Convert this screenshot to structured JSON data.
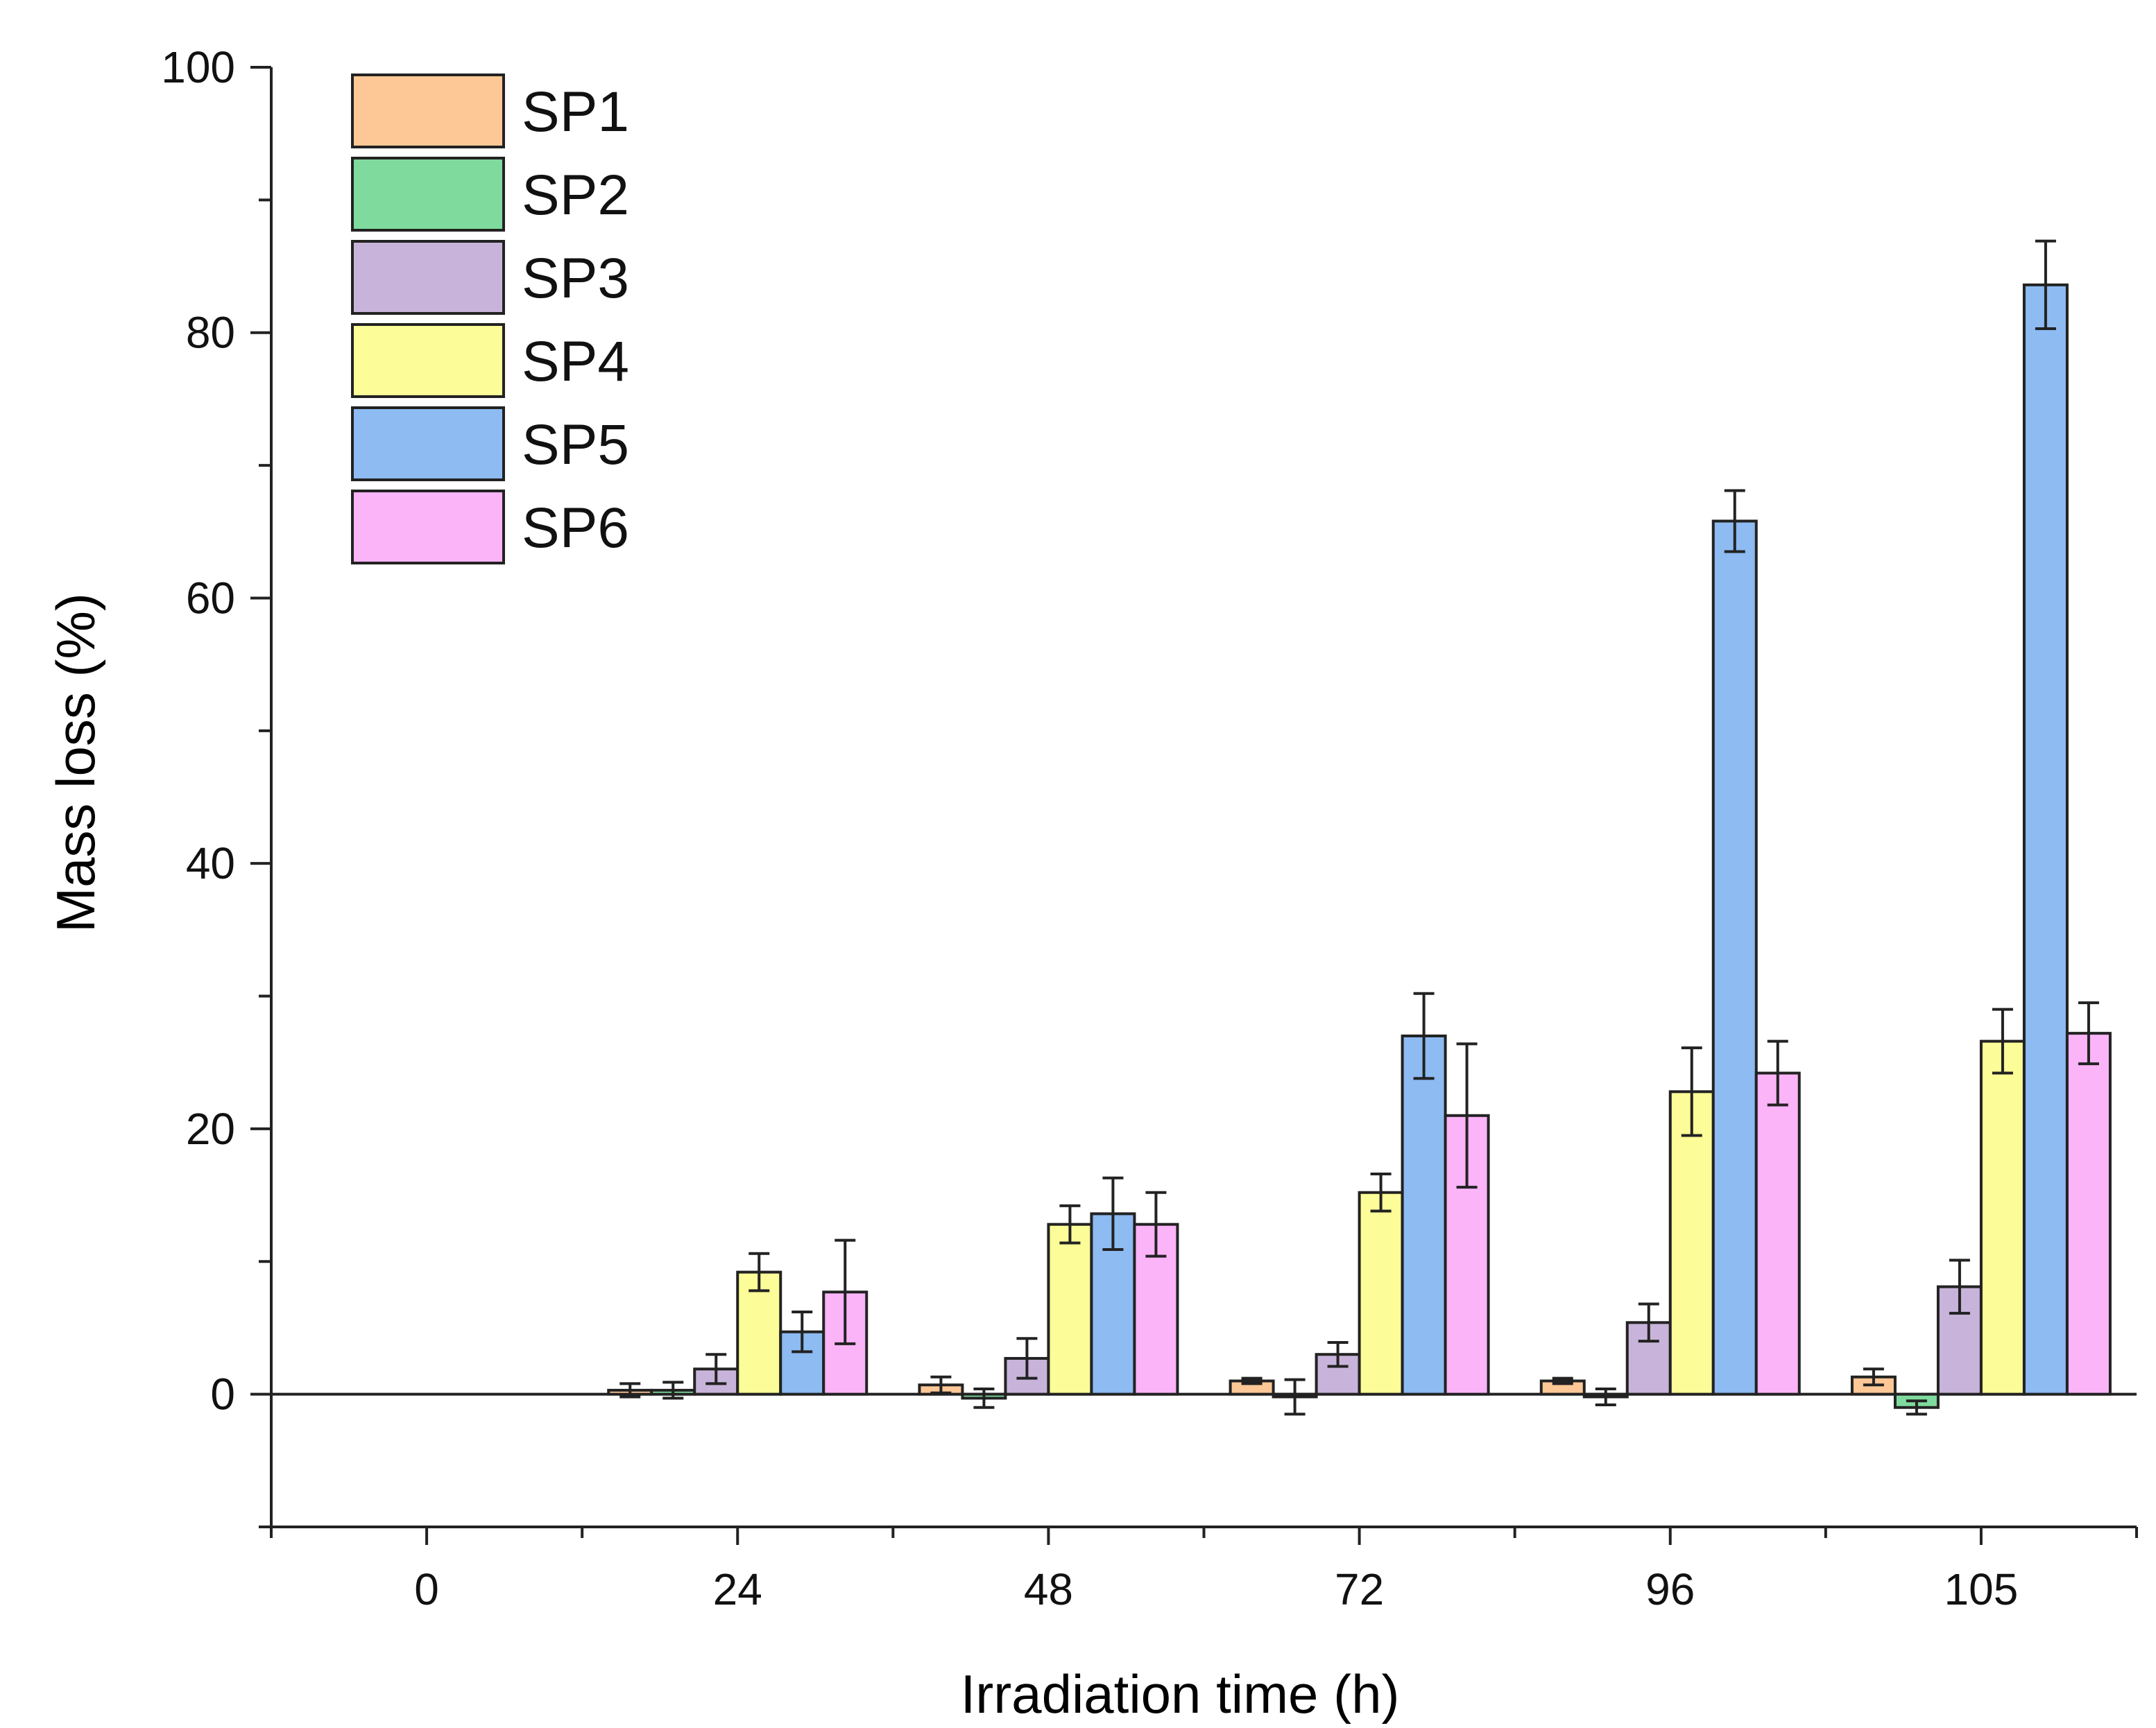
{
  "chart_data": {
    "type": "bar",
    "title": "",
    "xlabel": "Irradiation time (h)",
    "ylabel": "Mass loss (%)",
    "categories": [
      "0",
      "24",
      "48",
      "72",
      "96",
      "105"
    ],
    "ylim": [
      -10,
      100
    ],
    "yticks": [
      0,
      20,
      40,
      60,
      80,
      100
    ],
    "legend_position": "top-left",
    "series": [
      {
        "name": "SP1",
        "color": "#fdc896",
        "values": [
          null,
          0.3,
          0.7,
          1.0,
          1.0,
          1.3
        ],
        "errors": [
          null,
          0.5,
          0.6,
          0.2,
          0.2,
          0.6
        ]
      },
      {
        "name": "SP2",
        "color": "#7fdb9d",
        "values": [
          null,
          0.3,
          -0.3,
          -0.2,
          -0.2,
          -1.0
        ],
        "errors": [
          null,
          0.6,
          0.7,
          1.3,
          0.6,
          0.5
        ]
      },
      {
        "name": "SP3",
        "color": "#c8b4da",
        "values": [
          null,
          1.9,
          2.7,
          3.0,
          5.4,
          8.1
        ],
        "errors": [
          null,
          1.1,
          1.5,
          0.9,
          1.4,
          2.0
        ]
      },
      {
        "name": "SP4",
        "color": "#fcfc98",
        "values": [
          null,
          9.2,
          12.8,
          15.2,
          22.8,
          26.6
        ],
        "errors": [
          null,
          1.4,
          1.4,
          1.4,
          3.3,
          2.4
        ]
      },
      {
        "name": "SP5",
        "color": "#8dbbf2",
        "values": [
          null,
          4.7,
          13.6,
          27.0,
          65.8,
          83.6
        ],
        "errors": [
          null,
          1.5,
          2.7,
          3.2,
          2.3,
          3.3
        ]
      },
      {
        "name": "SP6",
        "color": "#fbb4f8",
        "values": [
          null,
          7.7,
          12.8,
          21.0,
          24.2,
          27.2
        ],
        "errors": [
          null,
          3.9,
          2.4,
          5.4,
          2.4,
          2.3
        ]
      }
    ]
  }
}
